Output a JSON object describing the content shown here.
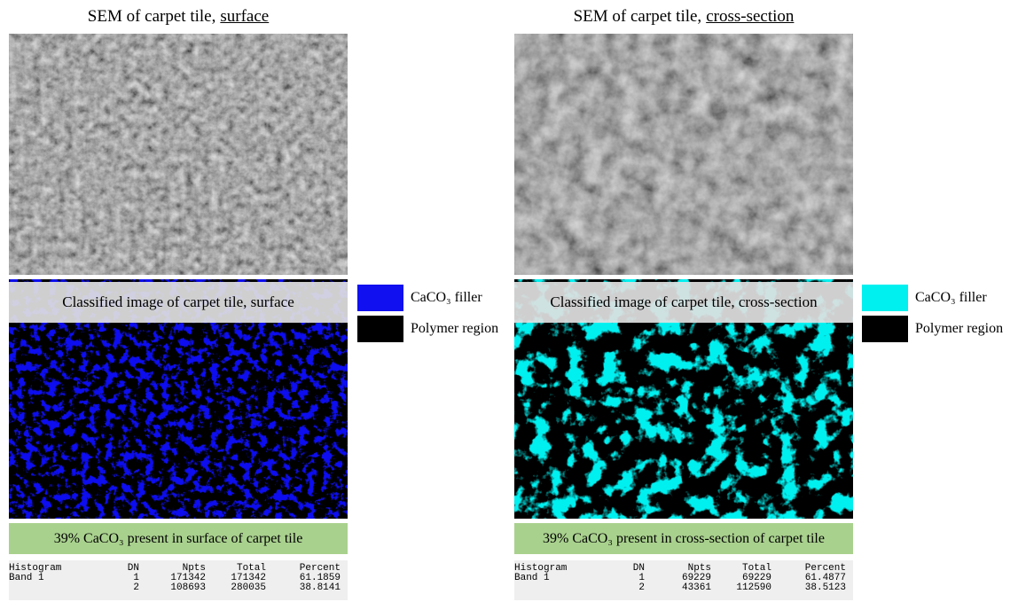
{
  "panels": [
    {
      "title": {
        "text": "SEM of carpet tile,",
        "emphasis": "surface"
      },
      "classified_label": "Classified image of carpet tile, surface",
      "legend": [
        {
          "label": "CaCO₃ filler",
          "color": "#1010f0"
        },
        {
          "label": "Polymer region",
          "color": "#000000"
        }
      ],
      "result": "39% CaCO₃ present in surface of carpet tile",
      "histogram": {
        "header": [
          "Histogram",
          "DN",
          "Npts",
          "Total",
          "Percent"
        ],
        "rows": [
          {
            "label": "Band 1",
            "cells": [
              1,
              171342,
              171342,
              61.1859
            ]
          },
          {
            "cells": [
              2,
              108693,
              280035,
              38.8141
            ]
          }
        ]
      }
    },
    {
      "title": {
        "text": "SEM of carpet tile,",
        "emphasis": "cross-section"
      },
      "classified_label": "Classified image of carpet tile, cross-section",
      "legend": [
        {
          "label": "CaCO₃ filler",
          "color": "#00f0f0"
        },
        {
          "label": "Polymer region",
          "color": "#000000"
        }
      ],
      "result": "39% CaCO₃ present in cross-section of carpet tile",
      "histogram": {
        "header": [
          "Histogram",
          "DN",
          "Npts",
          "Total",
          "Percent"
        ],
        "rows": [
          {
            "label": "Band 1",
            "cells": [
              1,
              69229,
              69229,
              61.4877
            ]
          },
          {
            "cells": [
              2,
              43361,
              112590,
              38.5123
            ]
          }
        ]
      }
    }
  ]
}
